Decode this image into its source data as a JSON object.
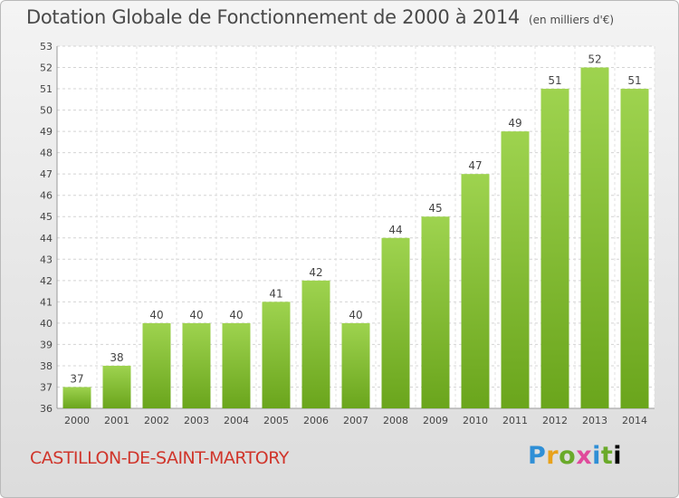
{
  "header": {
    "title": "Dotation Globale de Fonctionnement de 2000 à 2014",
    "subtitle": "(en milliers d'€)"
  },
  "footer": {
    "commune": "CASTILLON-DE-SAINT-MARTORY",
    "logo_letters": [
      "P",
      "r",
      "o",
      "x",
      "i",
      "t",
      "i"
    ]
  },
  "chart_data": {
    "type": "bar",
    "title": "Dotation Globale de Fonctionnement de 2000 à 2014",
    "subtitle": "(en milliers d'€)",
    "xlabel": "",
    "ylabel": "",
    "categories": [
      "2000",
      "2001",
      "2002",
      "2003",
      "2004",
      "2005",
      "2006",
      "2007",
      "2008",
      "2009",
      "2010",
      "2011",
      "2012",
      "2013",
      "2014"
    ],
    "values": [
      37,
      38,
      40,
      40,
      40,
      41,
      42,
      40,
      44,
      45,
      47,
      49,
      51,
      52,
      51
    ],
    "ylim": [
      36,
      53
    ],
    "yticks": [
      36,
      37,
      38,
      39,
      40,
      41,
      42,
      43,
      44,
      45,
      46,
      47,
      48,
      49,
      50,
      51,
      52,
      53
    ],
    "grid": true,
    "bar_color": "#8cc63f"
  }
}
